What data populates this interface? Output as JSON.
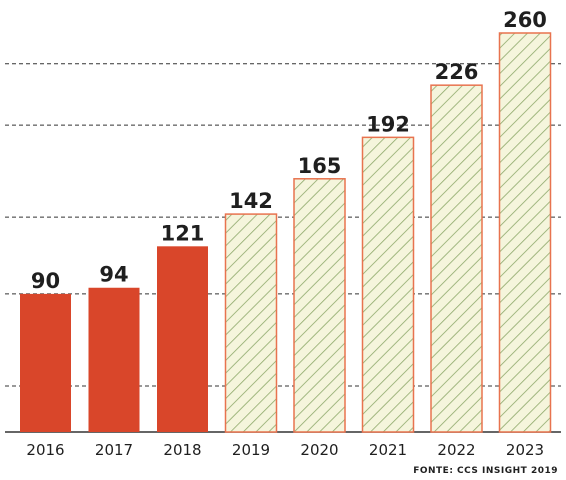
{
  "chart_data": {
    "type": "bar",
    "categories": [
      "2016",
      "2017",
      "2018",
      "2019",
      "2020",
      "2021",
      "2022",
      "2023"
    ],
    "values": [
      90,
      94,
      121,
      142,
      165,
      192,
      226,
      260
    ],
    "actual_count": 3,
    "actual_color": "#d9462a",
    "forecast_fill": "#f5f5dc",
    "forecast_stroke": "#e8734f",
    "forecast_hatch": "#8ea86a",
    "grid": true,
    "grid_style": "dashed",
    "ylim": [
      0,
      260
    ],
    "xlabel": "",
    "ylabel": ""
  },
  "source": "FONTE: CCS INSIGHT 2019"
}
